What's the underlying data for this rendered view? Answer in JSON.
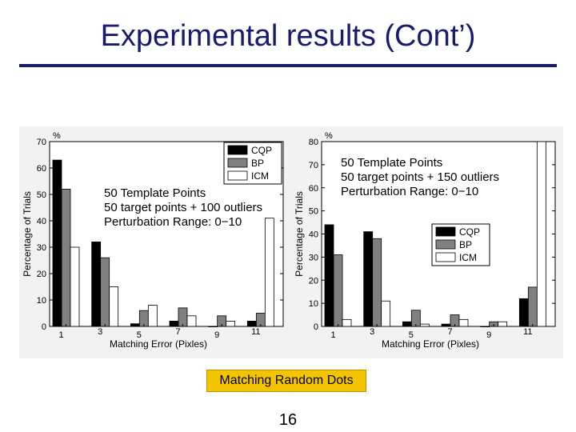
{
  "slide": {
    "title": "Experimental results (Cont’)",
    "caption": "Matching Random Dots",
    "page_number": "16"
  },
  "colors": {
    "title": "#1a1a6e",
    "caption_bg": "#f4c400",
    "CQP": "#000000",
    "BP": "#808080",
    "ICM": "#ffffff"
  },
  "chart_data": [
    {
      "type": "bar",
      "categories": [
        "1",
        "3",
        "5",
        "7",
        "9",
        "11"
      ],
      "series": [
        {
          "name": "CQP",
          "values": [
            63,
            32,
            1,
            2,
            0,
            2
          ]
        },
        {
          "name": "BP",
          "values": [
            52,
            26,
            6,
            7,
            4,
            5
          ]
        },
        {
          "name": "ICM",
          "values": [
            30,
            15,
            8,
            4,
            2,
            41
          ]
        }
      ],
      "xlabel": "Matching Error (Pixles)",
      "ylabel": "Percentage of Trials",
      "yunit": "%",
      "ylim": [
        0,
        70
      ],
      "yticks": [
        0,
        10,
        20,
        30,
        40,
        50,
        60,
        70
      ],
      "legend": "top-right",
      "annotation": [
        "50 Template Points",
        "50 target points + 100 outliers",
        "Perturbation Range: 0−10"
      ]
    },
    {
      "type": "bar",
      "categories": [
        "1",
        "3",
        "5",
        "7",
        "9",
        "11"
      ],
      "series": [
        {
          "name": "CQP",
          "values": [
            44,
            41,
            2,
            1,
            0,
            12
          ]
        },
        {
          "name": "BP",
          "values": [
            31,
            38,
            7,
            5,
            2,
            17
          ]
        },
        {
          "name": "ICM",
          "values": [
            3,
            11,
            1,
            3,
            2,
            80
          ]
        }
      ],
      "xlabel": "Matching Error (Pixles)",
      "ylabel": "Percentage of Trials",
      "yunit": "%",
      "ylim": [
        0,
        80
      ],
      "yticks": [
        0,
        10,
        20,
        30,
        40,
        50,
        60,
        70,
        80
      ],
      "legend": "center-right",
      "annotation": [
        "50 Template Points",
        "50 target points + 150 outliers",
        "Perturbation Range: 0−10"
      ]
    }
  ]
}
